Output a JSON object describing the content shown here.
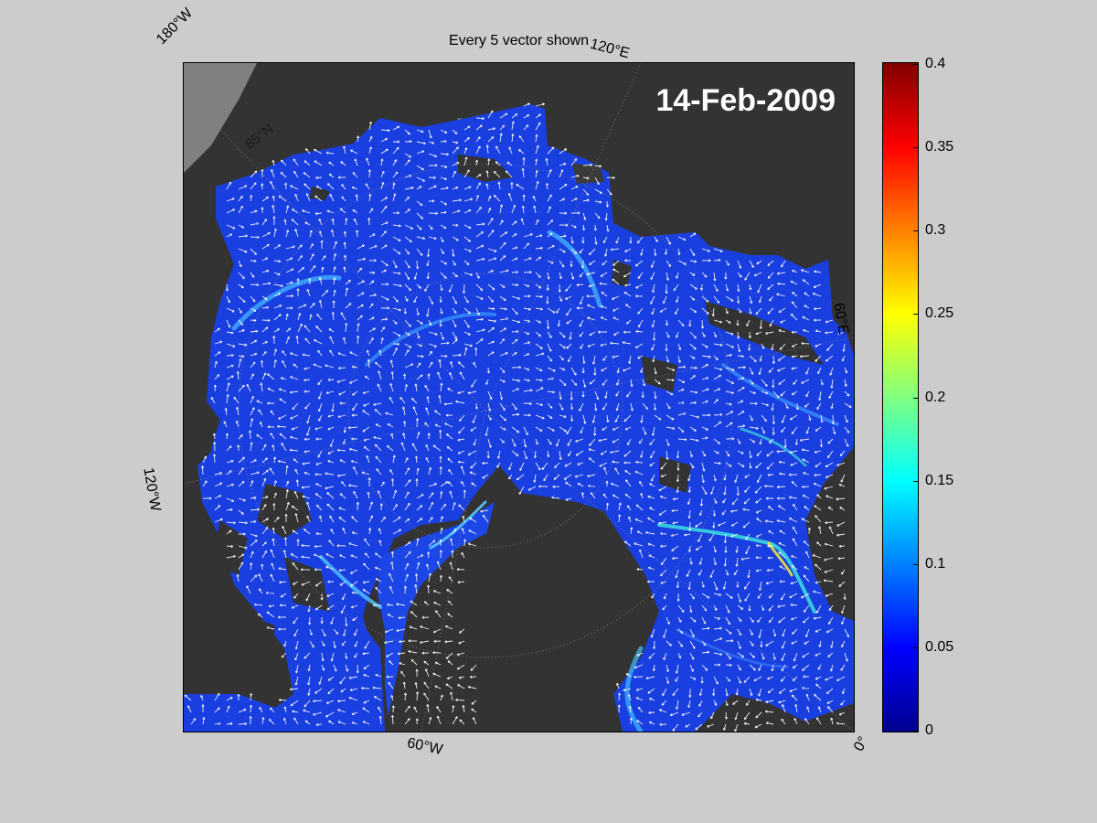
{
  "title": "Every 5 vector shown",
  "date": "14-Feb-2009",
  "lat_label": "85°N",
  "coord_labels": {
    "top_left": "180°W",
    "top_right": "120°E",
    "right": "60°E",
    "left": "120°W",
    "bottom": "60°W",
    "bottom_right": "0°"
  },
  "colorbar": {
    "min": 0,
    "max": 0.4,
    "ticks": [
      "0.4",
      "0.35",
      "0.3",
      "0.25",
      "0.2",
      "0.15",
      "0.1",
      "0.05",
      "0"
    ],
    "colormap": "jet"
  },
  "colors": {
    "background": "#cccccc",
    "land": "#333333",
    "ice_low": "#1a33e6",
    "ice_high": "#33ccff",
    "vector": "#ffffff"
  }
}
